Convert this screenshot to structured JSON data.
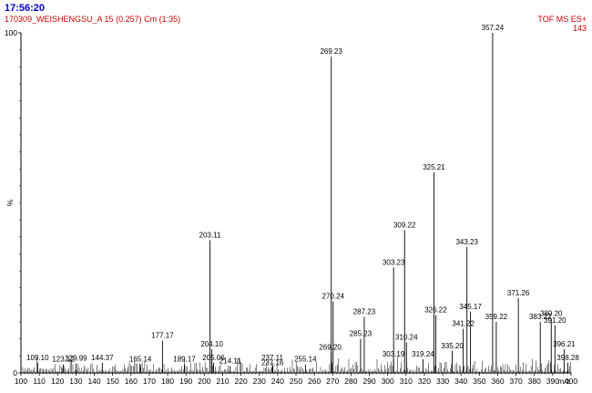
{
  "header": {
    "time": "17:56:20",
    "sample": "170309_WEISHENGSU_A 15 (0.257) Cm (1:35)",
    "mode": "TOF MS ES+",
    "scale": "143"
  },
  "chart_data": {
    "type": "bar",
    "title": "",
    "xlabel": "m/z",
    "ylabel": "%",
    "xlim": [
      100,
      400
    ],
    "ylim": [
      0,
      100
    ],
    "x_ticks": [
      100,
      110,
      120,
      130,
      140,
      150,
      160,
      170,
      180,
      190,
      200,
      210,
      220,
      230,
      240,
      250,
      260,
      270,
      280,
      290,
      300,
      310,
      320,
      330,
      340,
      350,
      360,
      370,
      380,
      390,
      400
    ],
    "y_ticks": [
      0,
      100
    ],
    "grid": false,
    "peaks": [
      {
        "mz": 109.1,
        "label": "109.10",
        "intensity": 3
      },
      {
        "mz": 123.12,
        "label": "123.12",
        "intensity": 2.5
      },
      {
        "mz": 129.99,
        "label": "129.99",
        "intensity": 2.8
      },
      {
        "mz": 144.37,
        "label": "144.37",
        "intensity": 3
      },
      {
        "mz": 165.14,
        "label": "165.14",
        "intensity": 2.5
      },
      {
        "mz": 177.17,
        "label": "177.17",
        "intensity": 9.5
      },
      {
        "mz": 189.17,
        "label": "189.17",
        "intensity": 2.5
      },
      {
        "mz": 203.11,
        "label": "203.11",
        "intensity": 39
      },
      {
        "mz": 204.1,
        "label": "204.10",
        "intensity": 7
      },
      {
        "mz": 205.06,
        "label": "205.06",
        "intensity": 3
      },
      {
        "mz": 214.11,
        "label": "214.11",
        "intensity": 2
      },
      {
        "mz": 237.11,
        "label": "237.11",
        "intensity": 3
      },
      {
        "mz": 237.16,
        "label": "237.16",
        "intensity": 1.5
      },
      {
        "mz": 255.14,
        "label": "255.14",
        "intensity": 2.5
      },
      {
        "mz": 269.2,
        "label": "269.20.",
        "intensity": 6
      },
      {
        "mz": 269.23,
        "label": "269.23",
        "intensity": 93
      },
      {
        "mz": 270.24,
        "label": "270.24",
        "intensity": 21
      },
      {
        "mz": 285.23,
        "label": "285.23",
        "intensity": 10
      },
      {
        "mz": 287.23,
        "label": "287.23",
        "intensity": 16.5
      },
      {
        "mz": 303.19,
        "label": "303.19",
        "intensity": 4
      },
      {
        "mz": 303.23,
        "label": "303.23",
        "intensity": 31
      },
      {
        "mz": 309.22,
        "label": "309.22",
        "intensity": 42
      },
      {
        "mz": 310.24,
        "label": "310.24",
        "intensity": 9
      },
      {
        "mz": 319.24,
        "label": "319.24",
        "intensity": 4
      },
      {
        "mz": 325.21,
        "label": "325.21",
        "intensity": 59
      },
      {
        "mz": 326.22,
        "label": "326.22",
        "intensity": 17
      },
      {
        "mz": 335.2,
        "label": "335.20",
        "intensity": 6.5
      },
      {
        "mz": 341.22,
        "label": "341.22",
        "intensity": 13
      },
      {
        "mz": 343.23,
        "label": "343.23",
        "intensity": 37
      },
      {
        "mz": 345.17,
        "label": "345.17",
        "intensity": 18
      },
      {
        "mz": 357.24,
        "label": "357.24",
        "intensity": 100
      },
      {
        "mz": 359.22,
        "label": "359.22",
        "intensity": 15
      },
      {
        "mz": 371.26,
        "label": "371.26",
        "intensity": 22
      },
      {
        "mz": 383.22,
        "label": "383.22",
        "intensity": 15
      },
      {
        "mz": 389.2,
        "label": "389.20",
        "intensity": 16
      },
      {
        "mz": 391.2,
        "label": "391.20",
        "intensity": 14
      },
      {
        "mz": 396.21,
        "label": "396.21",
        "intensity": 7
      },
      {
        "mz": 398.28,
        "label": "398.28",
        "intensity": 3
      }
    ]
  }
}
